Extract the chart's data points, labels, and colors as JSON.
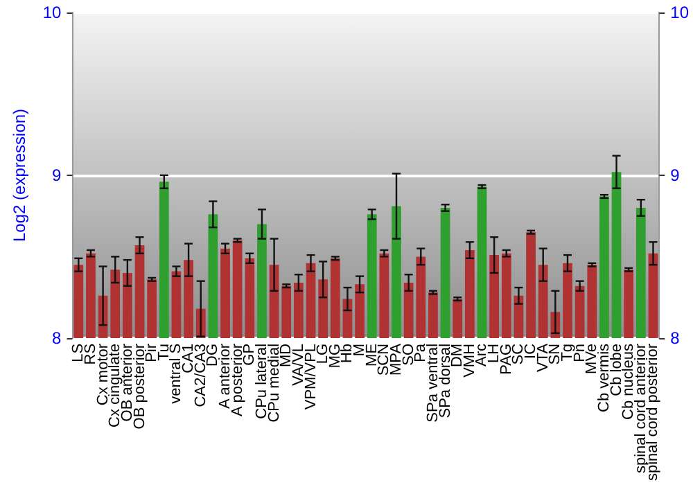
{
  "chart_data": {
    "type": "bar",
    "ylabel": "Log2 (expression)",
    "categories": [
      "LS",
      "RS",
      "Cx motor",
      "Cx cingulate",
      "OB anterior",
      "OB posterior",
      "Pir",
      "Tu",
      "ventral S",
      "CA1",
      "CA2/CA3",
      "DG",
      "A anterior",
      "A posterior",
      "GP",
      "CPu lateral",
      "CPu medial",
      "MD",
      "VA/VL",
      "VPM/VPL",
      "LG",
      "MG",
      "Hb",
      "M",
      "ME",
      "SCN",
      "MPA",
      "SO",
      "Pa",
      "SPa ventral",
      "SPa dorsal",
      "DM",
      "VMH",
      "Arc",
      "LH",
      "PAG",
      "SC",
      "IC",
      "VTA",
      "SN",
      "Tg",
      "Pn",
      "MVe",
      "Cb vermis",
      "Cb lobe",
      "Cb nucleus",
      "spinal cord anterior",
      "spinal cord posterior"
    ],
    "values": [
      8.45,
      8.52,
      8.26,
      8.42,
      8.4,
      8.57,
      8.36,
      8.96,
      8.41,
      8.48,
      8.18,
      8.76,
      8.55,
      8.6,
      8.49,
      8.7,
      8.45,
      8.32,
      8.34,
      8.46,
      8.36,
      8.49,
      8.24,
      8.33,
      8.76,
      8.52,
      8.81,
      8.34,
      8.5,
      8.28,
      8.8,
      8.24,
      8.54,
      8.93,
      8.51,
      8.52,
      8.26,
      8.65,
      8.45,
      8.16,
      8.46,
      8.32,
      8.45,
      8.87,
      9.02,
      8.42,
      8.8,
      8.52
    ],
    "errors": [
      0.04,
      0.02,
      0.18,
      0.08,
      0.08,
      0.05,
      0.01,
      0.04,
      0.03,
      0.1,
      0.17,
      0.08,
      0.03,
      0.01,
      0.03,
      0.09,
      0.16,
      0.01,
      0.05,
      0.05,
      0.11,
      0.01,
      0.07,
      0.05,
      0.03,
      0.02,
      0.2,
      0.05,
      0.05,
      0.01,
      0.02,
      0.01,
      0.05,
      0.01,
      0.11,
      0.02,
      0.05,
      0.01,
      0.1,
      0.13,
      0.05,
      0.03,
      0.01,
      0.01,
      0.1,
      0.01,
      0.05,
      0.07
    ],
    "colors": [
      "#b03232",
      "#b03232",
      "#b03232",
      "#b03232",
      "#b03232",
      "#b03232",
      "#b03232",
      "#2fa02f",
      "#b03232",
      "#b03232",
      "#b03232",
      "#2fa02f",
      "#b03232",
      "#b03232",
      "#b03232",
      "#2fa02f",
      "#b03232",
      "#b03232",
      "#b03232",
      "#b03232",
      "#b03232",
      "#b03232",
      "#b03232",
      "#b03232",
      "#2fa02f",
      "#b03232",
      "#2fa02f",
      "#b03232",
      "#b03232",
      "#b03232",
      "#2fa02f",
      "#b03232",
      "#b03232",
      "#2fa02f",
      "#b03232",
      "#b03232",
      "#b03232",
      "#b03232",
      "#b03232",
      "#b03232",
      "#b03232",
      "#b03232",
      "#b03232",
      "#2fa02f",
      "#2fa02f",
      "#b03232",
      "#2fa02f",
      "#b03232"
    ],
    "ylim": [
      8,
      10
    ],
    "yticks": [
      8,
      9,
      10
    ],
    "y2lim": [
      8,
      10
    ],
    "y2ticks": [
      8,
      9,
      10
    ],
    "grid": "y"
  }
}
